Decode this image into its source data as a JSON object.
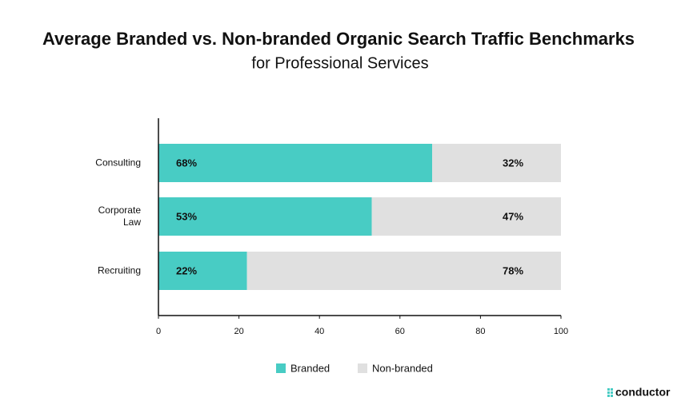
{
  "chart_data": {
    "type": "stacked_bar",
    "title": "Average Branded vs. Non-branded Organic Search Traffic Benchmarks",
    "subtitle": "for Professional Services",
    "categories": [
      "Consulting",
      "Corporate Law",
      "Recruiting"
    ],
    "series": [
      {
        "name": "Branded",
        "color": "#48ccc4",
        "values": [
          68,
          53,
          22
        ],
        "value_labels": [
          "68%",
          "53%",
          "22%"
        ]
      },
      {
        "name": "Non-branded",
        "color": "#e0e0e0",
        "values": [
          32,
          47,
          78
        ],
        "value_labels": [
          "32%",
          "47%",
          "78%"
        ]
      }
    ],
    "xlim": [
      0,
      100
    ],
    "xticks": [
      0,
      20,
      40,
      60,
      80,
      100
    ],
    "brand": "conductor"
  }
}
